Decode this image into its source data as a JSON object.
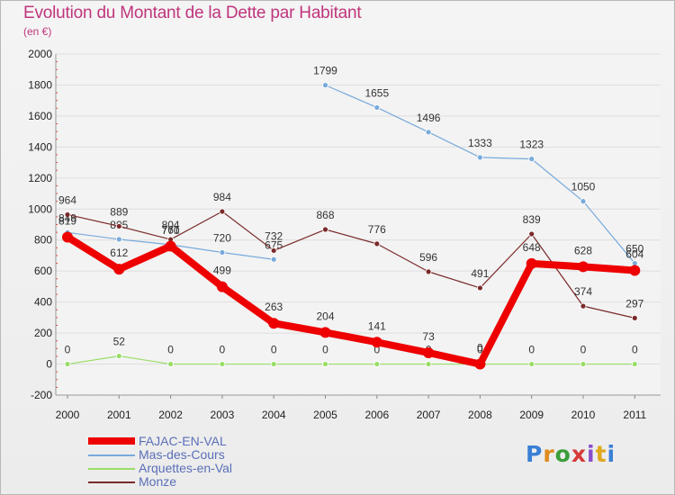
{
  "title": "Evolution du Montant de la Dette par Habitant",
  "unit": "(en €)",
  "logo": {
    "text": "Proxiti",
    "letters": [
      "P",
      "r",
      "o",
      "x",
      "i",
      "t",
      "i"
    ],
    "colors": [
      "#3a7fd5",
      "#e08a1e",
      "#3a9e3a",
      "#d63a3a",
      "#8a4fc8",
      "#e0a81e",
      "#3a7fd5"
    ]
  },
  "chart_data": {
    "type": "line",
    "title": "Evolution du Montant de la Dette par Habitant",
    "ylabel": "(en €)",
    "xlabel": "",
    "x": [
      "2000",
      "2001",
      "2002",
      "2003",
      "2004",
      "2005",
      "2006",
      "2007",
      "2008",
      "2009",
      "2010",
      "2011"
    ],
    "ylim": [
      -200,
      2000
    ],
    "yticks": [
      "-200",
      "0",
      "200",
      "400",
      "600",
      "800",
      "1000",
      "1200",
      "1400",
      "1600",
      "1800",
      "2000"
    ],
    "legend_position": "bottom-left",
    "series": [
      {
        "name": "FAJAC-EN-VAL",
        "color": "#ee0000",
        "values": [
          819,
          612,
          761,
          499,
          263,
          204,
          141,
          73,
          0,
          648,
          628,
          604
        ],
        "labels": [
          "819",
          "612",
          "761",
          "499",
          "263",
          "204",
          "141",
          "73",
          "0",
          "648",
          "628",
          "604"
        ]
      },
      {
        "name": "Mas-des-Cours",
        "color": "#78aadb",
        "values": [
          849,
          805,
          770,
          720,
          675,
          1799,
          1655,
          1496,
          1333,
          1323,
          1050,
          650
        ],
        "labels": [
          "849",
          "805",
          "770",
          "720",
          "675",
          "1799",
          "1655",
          "1496",
          "1333",
          "1323",
          "1050",
          "650"
        ]
      },
      {
        "name": "Arquettes-en-Val",
        "color": "#99dd66",
        "values": [
          0,
          52,
          0,
          0,
          0,
          0,
          0,
          0,
          0,
          0,
          0,
          0
        ],
        "labels": [
          "0",
          "52",
          "0",
          "0",
          "0",
          "0",
          "0",
          "0",
          "0",
          "0",
          "0",
          "0"
        ]
      },
      {
        "name": "Monze",
        "color": "#7a2a2a",
        "values": [
          964,
          889,
          804,
          984,
          732,
          868,
          776,
          596,
          491,
          839,
          374,
          297
        ],
        "labels": [
          "964",
          "889",
          "804",
          "984",
          "732",
          "868",
          "776",
          "596",
          "491",
          "839",
          "374",
          "297"
        ]
      }
    ]
  }
}
